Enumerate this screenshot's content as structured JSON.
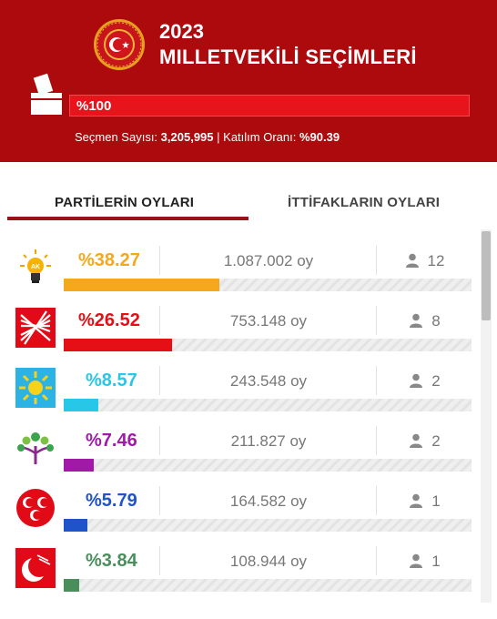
{
  "header": {
    "year": "2023",
    "title": "MILLETVEKİLİ SEÇİMLERİ",
    "progress_label": "%100",
    "voter_label": "Seçmen Sayısı:",
    "voter_count": "3,205,995",
    "separator": "|",
    "turnout_label": "Katılım Oranı:",
    "turnout": "%90.39"
  },
  "tabs": {
    "party_votes": "PARTİLERİN OYLARI",
    "alliance_votes": "İTTİFAKLARIN OYLARI"
  },
  "colors": {
    "header_bg": "#ad0a0e",
    "active_tab_underline": "#9a1217"
  },
  "parties": [
    {
      "icon": "ak-parti-lightbulb-icon",
      "pct": "%38.27",
      "share": 38.27,
      "votes": "1.087.002 oy",
      "seats": "12",
      "color": "#f5a81c"
    },
    {
      "icon": "chp-six-arrows-icon",
      "pct": "%26.52",
      "share": 26.52,
      "votes": "753.148 oy",
      "seats": "8",
      "color": "#e51016"
    },
    {
      "icon": "iyi-parti-sun-icon",
      "pct": "%8.57",
      "share": 8.57,
      "votes": "243.548 oy",
      "seats": "2",
      "color": "#27c7e8"
    },
    {
      "icon": "yesil-sol-tree-icon",
      "pct": "%7.46",
      "share": 7.46,
      "votes": "211.827 oy",
      "seats": "2",
      "color": "#a11aa7"
    },
    {
      "icon": "mhp-crescents-icon",
      "pct": "%5.79",
      "share": 5.79,
      "votes": "164.582 oy",
      "seats": "1",
      "color": "#1f53c9"
    },
    {
      "icon": "yeniden-refah-crescent-icon",
      "pct": "%3.84",
      "share": 3.84,
      "votes": "108.944 oy",
      "seats": "1",
      "color": "#4a8f5b"
    }
  ]
}
